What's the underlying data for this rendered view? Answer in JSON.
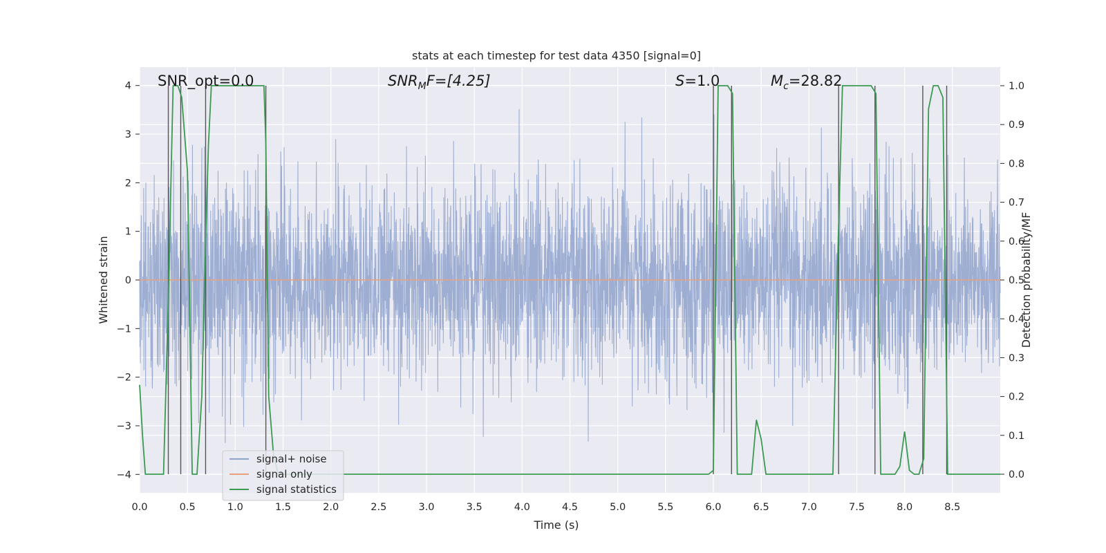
{
  "chart_data": {
    "type": "line",
    "title": "stats at each timestep for test data 4350 [signal=0]",
    "xlabel": "Time (s)",
    "ylabel": "Whitened strain",
    "y2label": "Detection probability/MF",
    "xlim": [
      0.0,
      9.0
    ],
    "ylim": [
      -4.38,
      4.38
    ],
    "y2lim": [
      -0.048,
      1.048
    ],
    "xticks": [
      "0.0",
      "0.5",
      "1.0",
      "1.5",
      "2.0",
      "2.5",
      "3.0",
      "3.5",
      "4.0",
      "4.5",
      "5.0",
      "5.5",
      "6.0",
      "6.5",
      "7.0",
      "7.5",
      "8.0",
      "8.5"
    ],
    "yticks": [
      "4",
      "3",
      "2",
      "1",
      "0",
      "−1",
      "−2",
      "−3",
      "−4"
    ],
    "y2ticks": [
      "1.0",
      "0.9",
      "0.8",
      "0.7",
      "0.6",
      "0.5",
      "0.4",
      "0.3",
      "0.2",
      "0.1",
      "0.0"
    ],
    "annotations": {
      "snr_opt": "SNR_opt=0.0",
      "snr_mf_base": "SNR",
      "snr_mf_sub": "M",
      "snr_mf_rest": "F=[4.25]",
      "s_sym": "S",
      "s_rest": "=1.0",
      "mc_sym": "M",
      "mc_sub": "c",
      "mc_rest": "=28.82"
    },
    "legend_position": "lower-left",
    "series": [
      {
        "name": "signal+ noise",
        "color": "#8fa3cc",
        "description": "whitened noise, amplitude roughly within ±2 with spikes to ±4"
      },
      {
        "name": "signal only",
        "color": "#e8a07a",
        "values_constant": 0.0
      },
      {
        "name": "signal statistics",
        "color": "#3a9a4f",
        "axis": "right",
        "x": [
          0.0,
          0.03,
          0.06,
          0.1,
          0.2,
          0.25,
          0.3,
          0.35,
          0.37,
          0.4,
          0.44,
          0.5,
          0.55,
          0.6,
          0.65,
          0.69,
          0.72,
          0.75,
          0.8,
          1.0,
          1.3,
          1.32,
          1.35,
          1.4,
          1.45,
          2.0,
          3.0,
          4.0,
          5.0,
          5.95,
          6.0,
          6.05,
          6.15,
          6.2,
          6.25,
          6.35,
          6.4,
          6.45,
          6.5,
          6.55,
          6.6,
          6.75,
          7.0,
          7.25,
          7.3,
          7.35,
          7.4,
          7.65,
          7.7,
          7.75,
          7.8,
          7.9,
          7.95,
          8.0,
          8.05,
          8.1,
          8.15,
          8.2,
          8.25,
          8.3,
          8.35,
          8.4,
          8.45,
          8.5,
          9.0
        ],
        "values": [
          0.23,
          0.1,
          0.0,
          0.0,
          0.0,
          0.0,
          0.45,
          1.0,
          1.0,
          1.0,
          0.97,
          0.78,
          0.0,
          0.0,
          0.2,
          0.6,
          0.85,
          1.0,
          1.0,
          1.0,
          1.0,
          0.85,
          0.2,
          0.05,
          0.0,
          0.0,
          0.0,
          0.0,
          0.0,
          0.0,
          0.01,
          1.0,
          1.0,
          0.98,
          0.0,
          0.0,
          0.0,
          0.14,
          0.09,
          0.0,
          0.0,
          0.0,
          0.0,
          0.0,
          0.55,
          1.0,
          1.0,
          1.0,
          0.98,
          0.0,
          0.0,
          0.0,
          0.02,
          0.11,
          0.01,
          0.0,
          0.0,
          0.04,
          0.94,
          1.0,
          1.0,
          0.97,
          0.0,
          0.0,
          0.0
        ]
      }
    ],
    "vlines_x": [
      0.3,
      0.43,
      0.69,
      1.32,
      6.0,
      6.19,
      7.31,
      7.69,
      8.19,
      8.44
    ]
  }
}
